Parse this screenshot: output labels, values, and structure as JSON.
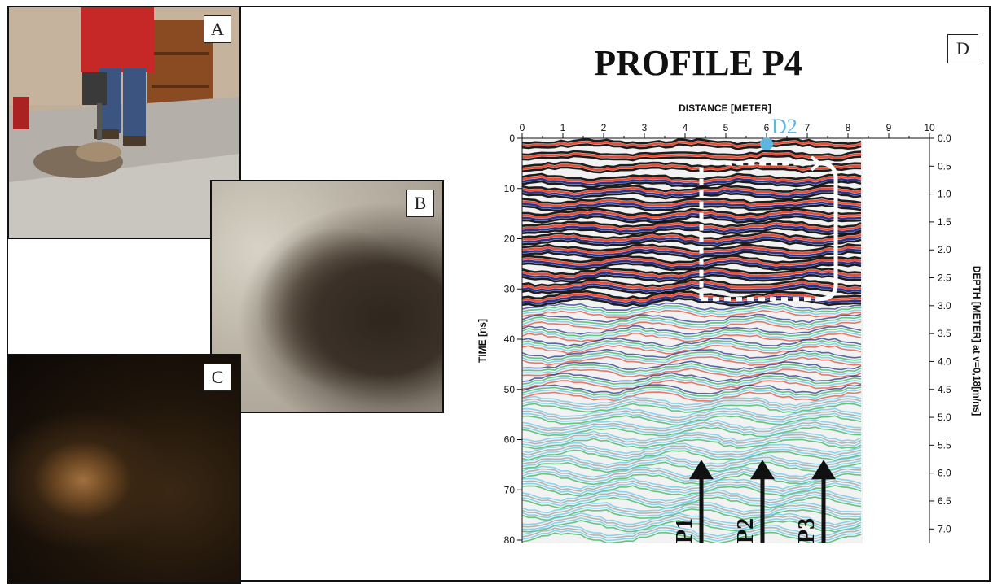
{
  "figure": {
    "panels": [
      {
        "label": "A"
      },
      {
        "label": "B"
      },
      {
        "label": "C"
      },
      {
        "label": "D"
      }
    ]
  },
  "chart_data": {
    "type": "heatmap",
    "title": "PROFILE P4",
    "xlabel": "DISTANCE [METER]",
    "ylabel": "TIME [ns]",
    "y2label": "DEPTH [METER] at v=0,18[m/ns]",
    "xlim": [
      0,
      10
    ],
    "ylim": [
      0,
      80
    ],
    "y2lim": [
      0.0,
      7.2
    ],
    "x_ticks": [
      "0",
      "1",
      "2",
      "3",
      "4",
      "5",
      "6",
      "7",
      "8",
      "9",
      "10"
    ],
    "y_ticks": [
      "0",
      "10",
      "20",
      "30",
      "40",
      "50",
      "60",
      "70",
      "80"
    ],
    "y2_ticks": [
      "0.0",
      "0.5",
      "1.0",
      "1.5",
      "2.0",
      "2.5",
      "3.0",
      "3.5",
      "4.0",
      "4.5",
      "5.0",
      "5.5",
      "6.0",
      "6.5",
      "7.0"
    ],
    "data_extent_x": [
      0,
      8.4
    ],
    "marker": {
      "label": "D2",
      "x": 6.0,
      "color": "#5fb6e0"
    },
    "anomaly_box": {
      "x_range": [
        4.4,
        7.7
      ],
      "time_range": [
        5,
        32
      ]
    },
    "arrows": [
      {
        "label": "P1",
        "x": 4.4
      },
      {
        "label": "P2",
        "x": 5.9
      },
      {
        "label": "P3",
        "x": 7.4
      }
    ],
    "colors": [
      "#111111",
      "#e8432c",
      "#1a2a8a",
      "#2bb04a",
      "#5ec8e8",
      "#9a9a9a"
    ]
  }
}
